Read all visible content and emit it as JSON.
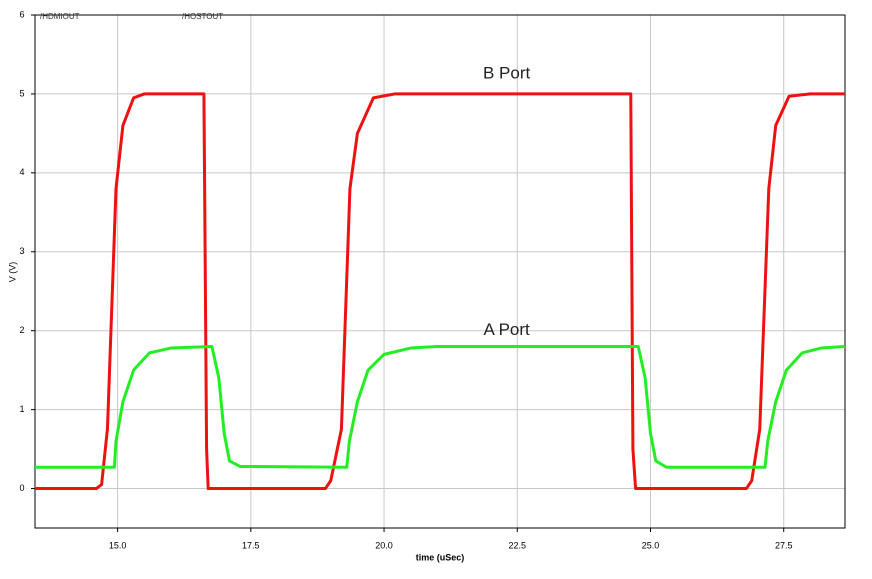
{
  "chart_data": {
    "type": "line",
    "xlabel": "time (uSec)",
    "ylabel": "V (V)",
    "xlim": [
      13.45,
      28.65
    ],
    "ylim": [
      -0.5,
      6
    ],
    "xticks": [
      {
        "value": 15,
        "label": "15.0"
      },
      {
        "value": 17.5,
        "label": "17.5"
      },
      {
        "value": 20,
        "label": "20.0"
      },
      {
        "value": 22.5,
        "label": "22.5"
      },
      {
        "value": 25,
        "label": "25.0"
      },
      {
        "value": 27.5,
        "label": "27.5"
      }
    ],
    "yticks": [
      0,
      1,
      2,
      3,
      4,
      5,
      6
    ],
    "grid": true,
    "annotations": [
      {
        "text": "B Port",
        "x": 22.3,
        "y": 5.25
      },
      {
        "text": "A Port",
        "x": 22.3,
        "y": 2.0
      }
    ],
    "series": [
      {
        "name": "/HDMIOUT",
        "color": "#ee1111",
        "x": [
          13.45,
          14.6,
          14.7,
          14.81,
          14.97,
          15.1,
          15.3,
          15.5,
          16.62,
          16.67,
          16.7,
          18.9,
          19.0,
          19.2,
          19.36,
          19.5,
          19.8,
          20.2,
          24.63,
          24.67,
          24.72,
          26.8,
          26.9,
          27.05,
          27.22,
          27.35,
          27.6,
          28.0,
          28.65
        ],
        "values": [
          0,
          0,
          0.05,
          0.76,
          3.8,
          4.6,
          4.95,
          5,
          5,
          0.5,
          0,
          0,
          0.1,
          0.75,
          3.8,
          4.5,
          4.95,
          5,
          5,
          0.5,
          0,
          0,
          0.1,
          0.75,
          3.8,
          4.6,
          4.97,
          5,
          5
        ]
      },
      {
        "name": "/HOSTOUT",
        "color": "#22ee22",
        "x": [
          13.45,
          14.94,
          14.97,
          15.1,
          15.3,
          15.6,
          16.0,
          16.77,
          16.9,
          17.0,
          17.1,
          17.3,
          19.3,
          19.35,
          19.5,
          19.7,
          20.0,
          20.5,
          21.0,
          24.77,
          24.9,
          25.0,
          25.1,
          25.3,
          27.15,
          27.2,
          27.35,
          27.55,
          27.85,
          28.2,
          28.65
        ],
        "values": [
          0.27,
          0.27,
          0.6,
          1.1,
          1.5,
          1.72,
          1.78,
          1.8,
          1.4,
          0.7,
          0.35,
          0.28,
          0.27,
          0.6,
          1.1,
          1.5,
          1.7,
          1.78,
          1.8,
          1.8,
          1.4,
          0.7,
          0.35,
          0.27,
          0.27,
          0.6,
          1.1,
          1.5,
          1.72,
          1.78,
          1.8
        ]
      }
    ]
  }
}
